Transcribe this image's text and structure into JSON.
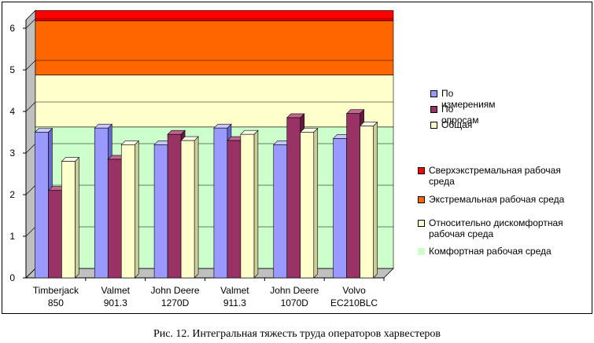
{
  "chart_data": {
    "type": "bar",
    "categories": [
      "Timberjack\n850",
      "Valmet\n901.3",
      "John Deere\n1270D",
      "Valmet\n911.3",
      "John Deere\n1070D",
      "Volvo\nEC210BLC"
    ],
    "series": [
      {
        "name": "По измерениям",
        "values": [
          3.5,
          3.6,
          3.2,
          3.6,
          3.2,
          3.35
        ],
        "color": "#9999FF"
      },
      {
        "name": "По опросам",
        "values": [
          2.1,
          2.85,
          3.45,
          3.3,
          3.85,
          3.95
        ],
        "color": "#993366"
      },
      {
        "name": "Общая",
        "values": [
          2.8,
          3.2,
          3.3,
          3.45,
          3.5,
          3.65
        ],
        "color": "#FFFFCC"
      }
    ],
    "zones": [
      {
        "name": "Комфортная рабочая среда",
        "from": 0,
        "to": 3.4,
        "color": "#CCFFCC"
      },
      {
        "name": "Относительно дискомфортная рабочая среда",
        "from": 3.4,
        "to": 4.65,
        "color": "#FFFFCC"
      },
      {
        "name": "Экстремальная рабочая среда",
        "from": 4.65,
        "to": 5.95,
        "color": "#FF6600"
      },
      {
        "name": "Сверхэкстремальная рабочая среда",
        "from": 5.95,
        "to": 6.2,
        "color": "#FF0000"
      }
    ],
    "y_ticks": [
      "0",
      "1",
      "2",
      "3",
      "4",
      "5",
      "6"
    ],
    "ylim": [
      0,
      6
    ],
    "grid": true,
    "legend_position": "right"
  },
  "legend_series": [
    {
      "label": "По измерениям",
      "color": "#9999FF"
    },
    {
      "label": "По опросам",
      "color": "#993366"
    },
    {
      "label": "Общая",
      "color": "#FFFFCC"
    }
  ],
  "legend_zones": [
    {
      "label": "Сверхэкстремальная рабочая среда",
      "color": "#FF0000"
    },
    {
      "label": "Экстремальная рабочая среда",
      "color": "#FF6600"
    },
    {
      "label": "Относительно дискомфортная рабочая среда",
      "color": "#FFFFCC"
    },
    {
      "label": "Комфортная рабочая среда",
      "color": "#CCFFCC"
    }
  ],
  "caption": "Рис. 12. Интегральная тяжесть труда операторов харвестеров"
}
